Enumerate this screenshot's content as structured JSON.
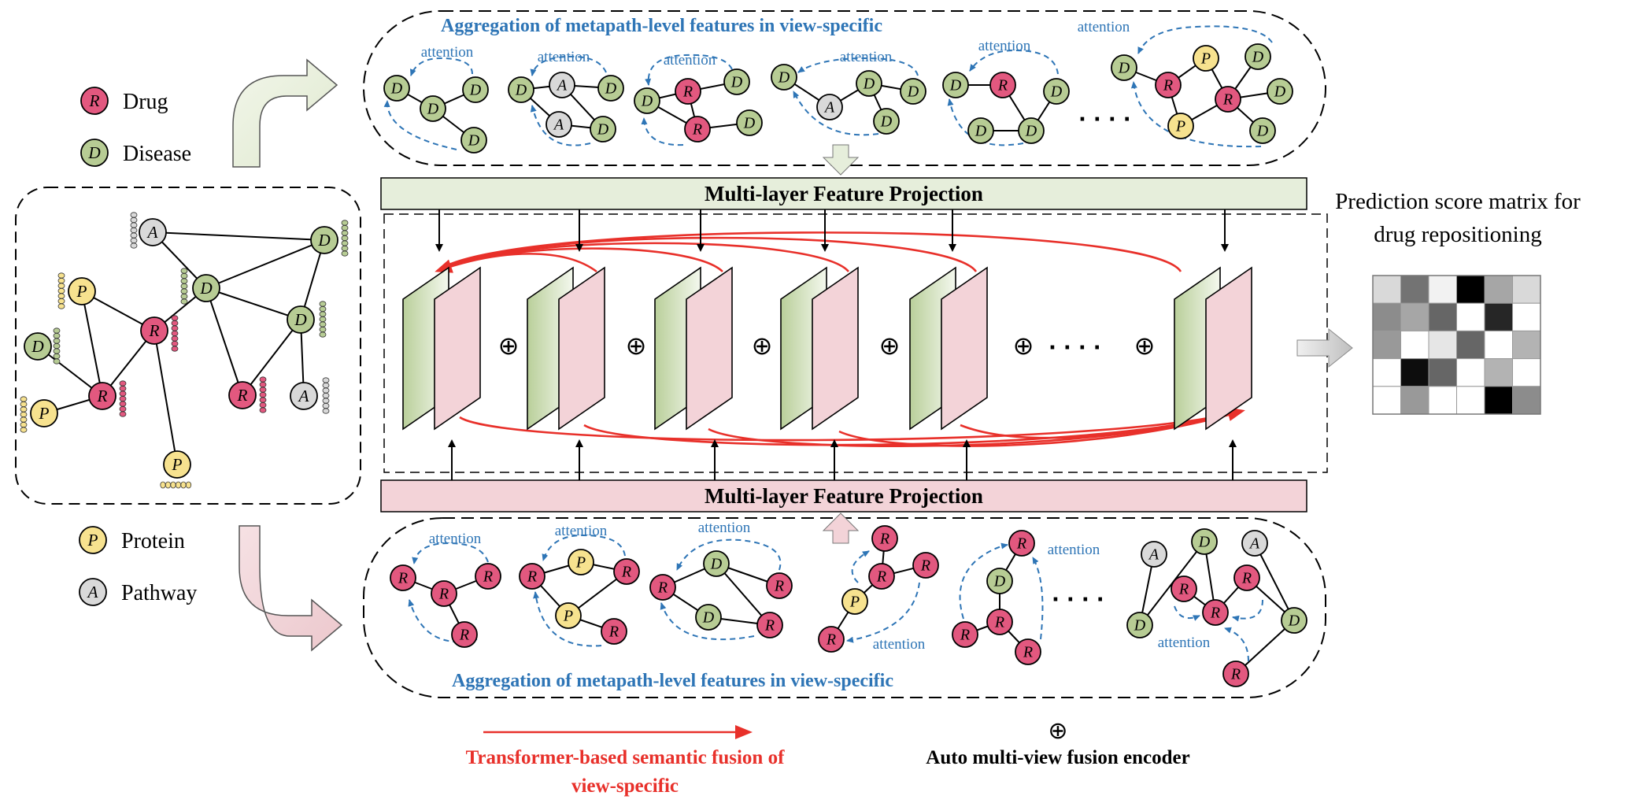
{
  "legend": [
    {
      "letter": "R",
      "label": "Drug",
      "type": "drug"
    },
    {
      "letter": "D",
      "label": "Disease",
      "type": "disease"
    },
    {
      "letter": "P",
      "label": "Protein",
      "type": "protein"
    },
    {
      "letter": "A",
      "label": "Pathway",
      "type": "pathway"
    }
  ],
  "top_title": "Aggregation of metapath-level features in  view-specific",
  "bottom_title": "Aggregation of metapath-level features in  view-specific",
  "attention_label": "attention",
  "projection_top": "Multi-layer Feature Projection",
  "projection_bottom": "Multi-layer Feature Projection",
  "prediction_title_line1": "Prediction score matrix for",
  "prediction_title_line2": "drug repositioning",
  "footer_red_line1": "Transformer-based semantic fusion of",
  "footer_red_line2": "view-specific",
  "footer_black": "Auto multi-view fusion encoder",
  "plus_symbol": "⊕",
  "ellipsis": "· · · ·",
  "score_matrix": [
    [
      0.15,
      0.55,
      0.05,
      1.0,
      0.35,
      0.15
    ],
    [
      0.45,
      0.35,
      0.6,
      0.0,
      0.85,
      0.0
    ],
    [
      0.4,
      0.0,
      0.1,
      0.6,
      0.0,
      0.3
    ],
    [
      0.0,
      0.95,
      0.6,
      0.0,
      0.3,
      0.0
    ],
    [
      0.0,
      0.4,
      0.0,
      0.0,
      1.0,
      0.45
    ]
  ],
  "colors": {
    "drug": "#e2587f",
    "disease": "#b7cc94",
    "protein": "#f7e28f",
    "pathway": "#d9d9d9",
    "attention_blue": "#2e75b6",
    "fusion_red": "#e8302a",
    "proj_green": "#e6eedb",
    "proj_pink": "#f3d3d8"
  }
}
